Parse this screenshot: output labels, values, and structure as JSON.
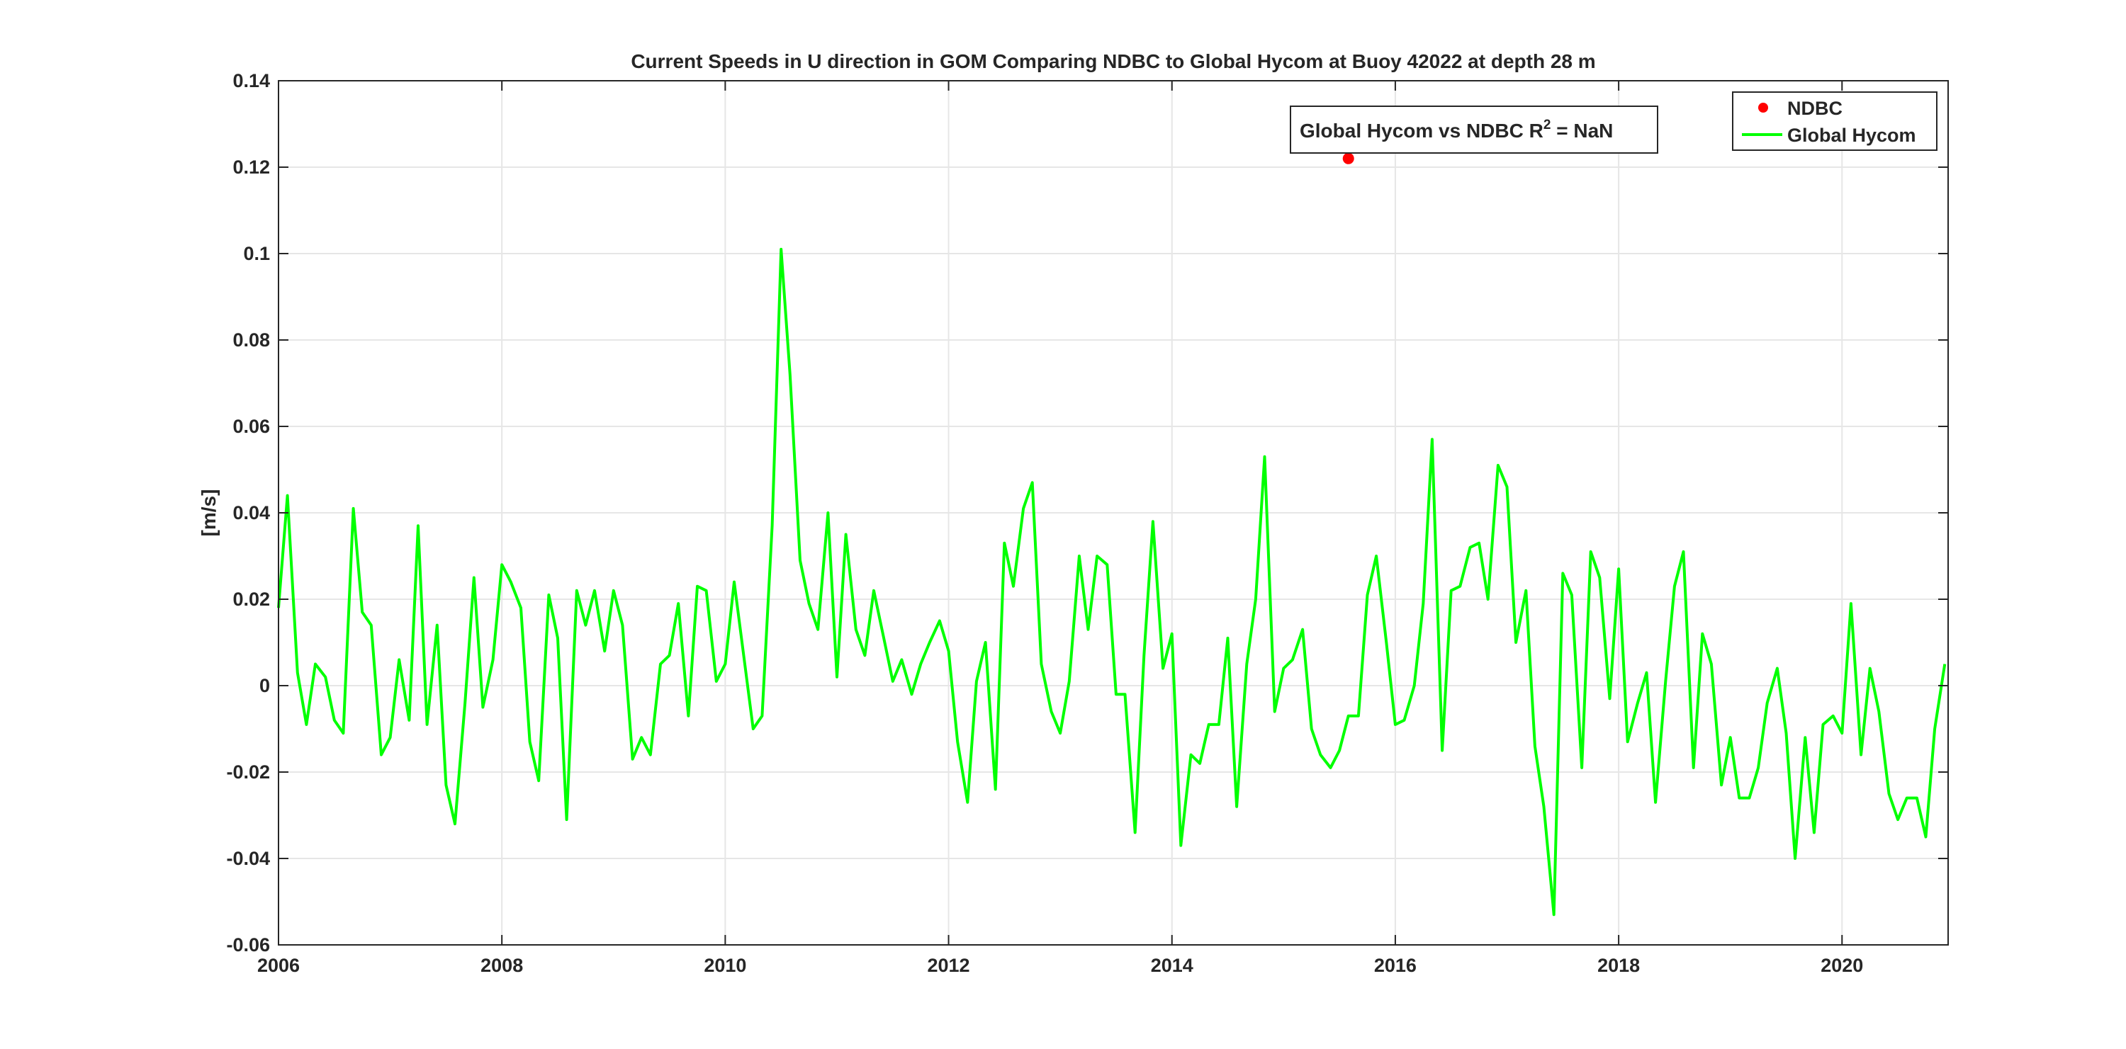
{
  "chart_data": {
    "type": "line",
    "title": "Current Speeds in U direction in GOM Comparing NDBC to Global Hycom at Buoy  42022  at depth  28 m",
    "xlabel": "",
    "ylabel": "[m/s]",
    "xlim": [
      2006,
      2020.95
    ],
    "ylim": [
      -0.06,
      0.14
    ],
    "xticks": [
      2006,
      2008,
      2010,
      2012,
      2014,
      2016,
      2018,
      2020
    ],
    "xtick_labels": [
      "2006",
      "2008",
      "2010",
      "2012",
      "2014",
      "2016",
      "2018",
      "2020"
    ],
    "yticks": [
      -0.06,
      -0.04,
      -0.02,
      0,
      0.02,
      0.04,
      0.06,
      0.08,
      0.1,
      0.12,
      0.14
    ],
    "ytick_labels": [
      "-0.06",
      "-0.04",
      "-0.02",
      "0",
      "0.02",
      "0.04",
      "0.06",
      "0.08",
      "0.1",
      "0.12",
      "0.14"
    ],
    "grid": true,
    "legend": {
      "position": "top-right",
      "entries": [
        {
          "name": "NDBC",
          "marker": "dot",
          "color": "#ff0000"
        },
        {
          "name": "Global Hycom",
          "marker": "line",
          "color": "#00ff00"
        }
      ]
    },
    "annotation": {
      "text": "Global Hycom vs NDBC R",
      "superscript": "2",
      "suffix": " = NaN"
    },
    "series": [
      {
        "name": "NDBC",
        "style": "marker",
        "color": "#ff0000",
        "x": [
          2015.58
        ],
        "y": [
          0.122
        ]
      },
      {
        "name": "Global Hycom",
        "style": "line",
        "color": "#00ff00",
        "x": [
          2006.0,
          2006.08,
          2006.17,
          2006.25,
          2006.33,
          2006.42,
          2006.5,
          2006.58,
          2006.67,
          2006.75,
          2006.83,
          2006.92,
          2007.0,
          2007.08,
          2007.17,
          2007.25,
          2007.33,
          2007.42,
          2007.5,
          2007.58,
          2007.67,
          2007.75,
          2007.83,
          2007.92,
          2008.0,
          2008.08,
          2008.17,
          2008.25,
          2008.33,
          2008.42,
          2008.5,
          2008.58,
          2008.67,
          2008.75,
          2008.83,
          2008.92,
          2009.0,
          2009.08,
          2009.17,
          2009.25,
          2009.33,
          2009.42,
          2009.5,
          2009.58,
          2009.67,
          2009.75,
          2009.83,
          2009.92,
          2010.0,
          2010.08,
          2010.17,
          2010.25,
          2010.33,
          2010.42,
          2010.5,
          2010.58,
          2010.67,
          2010.75,
          2010.83,
          2010.92,
          2011.0,
          2011.08,
          2011.17,
          2011.25,
          2011.33,
          2011.42,
          2011.5,
          2011.58,
          2011.67,
          2011.75,
          2011.83,
          2011.92,
          2012.0,
          2012.08,
          2012.17,
          2012.25,
          2012.33,
          2012.42,
          2012.5,
          2012.58,
          2012.67,
          2012.75,
          2012.83,
          2012.92,
          2013.0,
          2013.08,
          2013.17,
          2013.25,
          2013.33,
          2013.42,
          2013.5,
          2013.58,
          2013.67,
          2013.75,
          2013.83,
          2013.92,
          2014.0,
          2014.08,
          2014.17,
          2014.25,
          2014.33,
          2014.42,
          2014.5,
          2014.58,
          2014.67,
          2014.75,
          2014.83,
          2014.92,
          2015.0,
          2015.08,
          2015.17,
          2015.25,
          2015.33,
          2015.42,
          2015.5,
          2015.58,
          2015.67,
          2015.75,
          2015.83,
          2015.92,
          2016.0,
          2016.08,
          2016.17,
          2016.25,
          2016.33,
          2016.42,
          2016.5,
          2016.58,
          2016.67,
          2016.75,
          2016.83,
          2016.92,
          2017.0,
          2017.08,
          2017.17,
          2017.25,
          2017.33,
          2017.42,
          2017.5,
          2017.58,
          2017.67,
          2017.75,
          2017.83,
          2017.92,
          2018.0,
          2018.08,
          2018.17,
          2018.25,
          2018.33,
          2018.42,
          2018.5,
          2018.58,
          2018.67,
          2018.75,
          2018.83,
          2018.92,
          2019.0,
          2019.08,
          2019.17,
          2019.25,
          2019.33,
          2019.42,
          2019.5,
          2019.58,
          2019.67,
          2019.75,
          2019.83,
          2019.92,
          2020.0,
          2020.08,
          2020.17,
          2020.25,
          2020.33,
          2020.42,
          2020.5,
          2020.58,
          2020.67,
          2020.75,
          2020.83,
          2020.92
        ],
        "y": [
          0.018,
          0.044,
          0.003,
          -0.009,
          0.005,
          0.002,
          -0.008,
          -0.011,
          0.041,
          0.017,
          0.014,
          -0.016,
          -0.012,
          0.006,
          -0.008,
          0.037,
          -0.009,
          0.014,
          -0.023,
          -0.032,
          -0.004,
          0.025,
          -0.005,
          0.006,
          0.028,
          0.024,
          0.018,
          -0.013,
          -0.022,
          0.021,
          0.011,
          -0.031,
          0.022,
          0.014,
          0.022,
          0.008,
          0.022,
          0.014,
          -0.017,
          -0.012,
          -0.016,
          0.005,
          0.007,
          0.019,
          -0.007,
          0.023,
          0.022,
          0.001,
          0.005,
          0.024,
          0.006,
          -0.01,
          -0.007,
          0.037,
          0.101,
          0.072,
          0.029,
          0.019,
          0.013,
          0.04,
          0.002,
          0.035,
          0.013,
          0.007,
          0.022,
          0.011,
          0.001,
          0.006,
          -0.002,
          0.005,
          0.01,
          0.015,
          0.008,
          -0.013,
          -0.027,
          0.001,
          0.01,
          -0.024,
          0.033,
          0.023,
          0.041,
          0.047,
          0.005,
          -0.006,
          -0.011,
          0.001,
          0.03,
          0.013,
          0.03,
          0.028,
          -0.002,
          -0.002,
          -0.034,
          0.007,
          0.038,
          0.004,
          0.012,
          -0.037,
          -0.016,
          -0.018,
          -0.009,
          -0.009,
          0.011,
          -0.028,
          0.005,
          0.02,
          0.053,
          -0.006,
          0.004,
          0.006,
          0.013,
          -0.01,
          -0.016,
          -0.019,
          -0.015,
          -0.007,
          -0.007,
          0.021,
          0.03,
          0.01,
          -0.009,
          -0.008,
          0.0,
          0.019,
          0.057,
          -0.015,
          0.022,
          0.023,
          0.032,
          0.033,
          0.02,
          0.051,
          0.046,
          0.01,
          0.022,
          -0.014,
          -0.028,
          -0.053,
          0.026,
          0.021,
          -0.019,
          0.031,
          0.025,
          -0.003,
          0.027,
          -0.013,
          -0.004,
          0.003,
          -0.027,
          0.001,
          0.023,
          0.031,
          -0.019,
          0.012,
          0.005,
          -0.023,
          -0.012,
          -0.026,
          -0.026,
          -0.019,
          -0.004,
          0.004,
          -0.011,
          -0.04,
          -0.012,
          -0.034,
          -0.009,
          -0.007,
          -0.011,
          0.019,
          -0.016,
          0.004,
          -0.006,
          -0.025,
          -0.031,
          -0.026,
          -0.026,
          -0.035,
          -0.01,
          0.005
        ]
      }
    ]
  }
}
